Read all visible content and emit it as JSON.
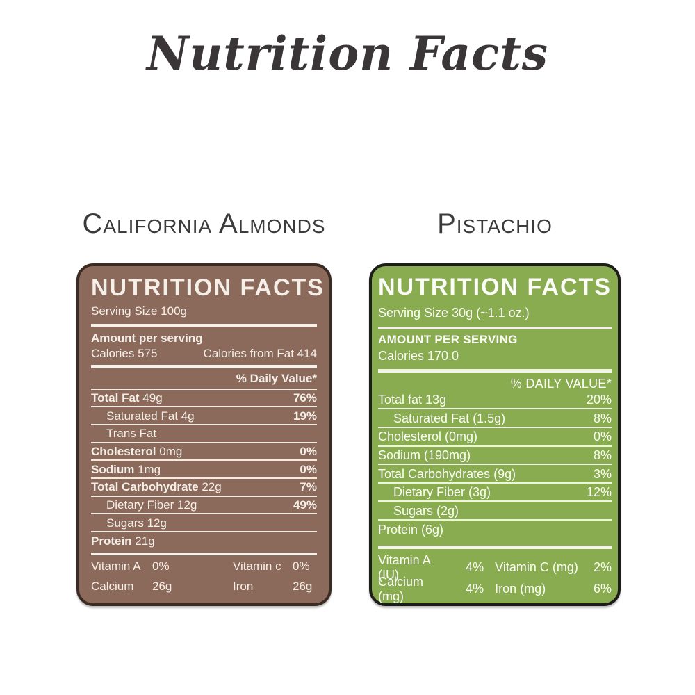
{
  "title": "Nutrition Facts",
  "almonds": {
    "subtitle": "California Almonds",
    "card_title": "NUTRITION FACTS",
    "serving": "Serving Size 100g",
    "amount_heading": "Amount per serving",
    "calories": "Calories 575",
    "calories_from_fat": "Calories from Fat 414",
    "daily_value_heading": "% Daily Value*",
    "rows": [
      {
        "b": "Total Fat",
        "r": " 49g",
        "v": "76%"
      },
      {
        "b": "",
        "r": "Saturated Fat 4g",
        "v": "19%"
      },
      {
        "b": "",
        "r": "Trans Fat",
        "v": ""
      },
      {
        "b": "Cholesterol",
        "r": " 0mg",
        "v": "0%"
      },
      {
        "b": "Sodium",
        "r": " 1mg",
        "v": "0%"
      },
      {
        "b": "Total Carbohydrate",
        "r": " 22g",
        "v": "7%"
      },
      {
        "b": "",
        "r": "Dietary Fiber 12g",
        "v": "49%"
      },
      {
        "b": "",
        "r": "Sugars 12g",
        "v": ""
      },
      {
        "b": "Protein",
        "r": " 21g",
        "v": ""
      }
    ],
    "micros": [
      {
        "l1": "Vitamin A",
        "v1": "0%",
        "l2": "Vitamin c",
        "v2": "0%"
      },
      {
        "l1": "Calcium",
        "v1": "26g",
        "l2": "Iron",
        "v2": "26g"
      }
    ],
    "colors": {
      "bg": "#8b6a5c",
      "border": "#3c2b22"
    }
  },
  "pistachio": {
    "subtitle": "Pistachio",
    "card_title": "NUTRITION FACTS",
    "serving": "Serving Size 30g (~1.1 oz.)",
    "amount_heading": "AMOUNT PER SERVING",
    "calories": "Calories 170.0",
    "daily_value_heading": "% DAILY VALUE*",
    "rows": [
      {
        "t": "Total fat 13g",
        "v": "20%"
      },
      {
        "t": "Saturated Fat (1.5g)",
        "v": "8%"
      },
      {
        "t": "Cholesterol (0mg)",
        "v": "0%"
      },
      {
        "t": "Sodium (190mg)",
        "v": "8%"
      },
      {
        "t": "Total Carbohydrates (9g)",
        "v": "3%"
      },
      {
        "t": "Dietary Fiber (3g)",
        "v": "12%"
      },
      {
        "t": "Sugars (2g)",
        "v": ""
      },
      {
        "t": "Protein (6g)",
        "v": ""
      }
    ],
    "micros": [
      {
        "l1": "Vitamin A (IU)",
        "v1": "4%",
        "l2": "Vitamin C (mg)",
        "v2": "2%"
      },
      {
        "l1": "Calcium (mg)",
        "v1": "4%",
        "l2": "Iron (mg)",
        "v2": "6%"
      }
    ],
    "colors": {
      "bg": "#89ac51",
      "border": "#1d1e1a"
    }
  }
}
